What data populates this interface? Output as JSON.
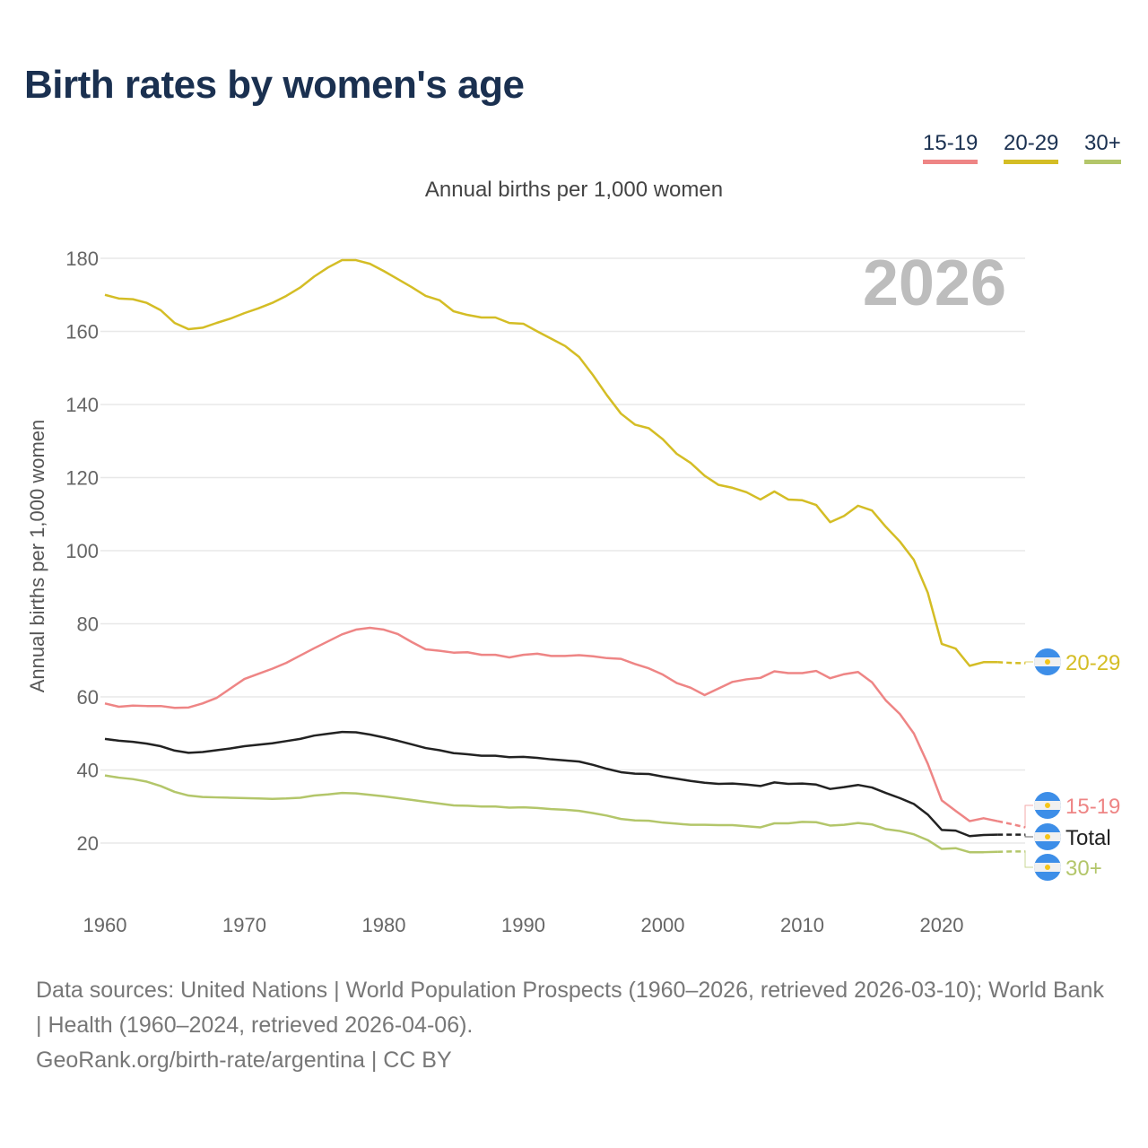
{
  "title": "Birth rates by women's age",
  "subtitle": "Annual births per 1,000 women",
  "year_watermark": "2026",
  "legend": [
    {
      "label": "15-19",
      "color": "#ee8585"
    },
    {
      "label": "20-29",
      "color": "#d4bd25"
    },
    {
      "label": "30+",
      "color": "#b3c66a"
    }
  ],
  "footer": {
    "sources": "Data sources: United Nations | World Population Prospects (1960–2026, retrieved 2026-03-10); World Bank | Health (1960–2024, retrieved 2026-04-06).",
    "credit": "GeoRank.org/birth-rate/argentina | CC BY"
  },
  "chart_data": {
    "type": "line",
    "title": "Birth rates by women's age",
    "xlabel": "",
    "ylabel": "Annual births per 1,000 women",
    "xlim": [
      1960,
      2026
    ],
    "ylim": [
      10,
      185
    ],
    "x_ticks": [
      1960,
      1970,
      1980,
      1990,
      2000,
      2010,
      2020
    ],
    "y_ticks": [
      20,
      40,
      60,
      80,
      100,
      120,
      140,
      160,
      180
    ],
    "grid": true,
    "projection_start": 2024,
    "x_start": 1960,
    "series": [
      {
        "name": "20-29",
        "color": "#d4bd25",
        "values": [
          170,
          169,
          168.8,
          167.8,
          165.8,
          162.3,
          160.6,
          161,
          162.3,
          163.5,
          165,
          166.3,
          167.8,
          169.7,
          172,
          175,
          177.5,
          179.5,
          179.5,
          178.5,
          176.5,
          174.3,
          172.1,
          169.7,
          168.5,
          165.5,
          164.5,
          163.8,
          163.8,
          162.3,
          162.1,
          160,
          158,
          156,
          153,
          148,
          142.5,
          137.5,
          134.5,
          133.5,
          130.5,
          126.5,
          124,
          120.5,
          118,
          117.2,
          116,
          114,
          116.2,
          114,
          113.8,
          112.5,
          107.8,
          109.5,
          112.3,
          111,
          106.5,
          102.5,
          97.5,
          88.5,
          74.5,
          73.2,
          68.5,
          69.5,
          69.5,
          69.3,
          69.2
        ]
      },
      {
        "name": "15-19",
        "color": "#ee8585",
        "values": [
          58.2,
          57.3,
          57.6,
          57.5,
          57.5,
          57,
          57.1,
          58.2,
          59.7,
          62.3,
          64.9,
          66.3,
          67.7,
          69.3,
          71.3,
          73.3,
          75.2,
          77.1,
          78.4,
          78.9,
          78.4,
          77.2,
          75,
          73,
          72.6,
          72.1,
          72.2,
          71.5,
          71.5,
          70.8,
          71.5,
          71.8,
          71.2,
          71.2,
          71.4,
          71.1,
          70.6,
          70.4,
          69,
          67.8,
          66.1,
          63.8,
          62.5,
          60.5,
          62.3,
          64.1,
          64.8,
          65.2,
          67,
          66.5,
          66.5,
          67.1,
          65.1,
          66.2,
          66.8,
          64,
          59,
          55.3,
          50,
          41.7,
          31.7,
          28.8,
          26,
          26.8,
          26,
          25.2,
          24.3
        ]
      },
      {
        "name": "Total",
        "color": "#222222",
        "values": [
          48.5,
          48,
          47.7,
          47.2,
          46.5,
          45.3,
          44.7,
          44.9,
          45.4,
          45.9,
          46.5,
          46.9,
          47.3,
          47.9,
          48.5,
          49.4,
          49.9,
          50.4,
          50.3,
          49.7,
          48.9,
          48,
          47,
          46,
          45.4,
          44.6,
          44.3,
          43.9,
          43.9,
          43.5,
          43.6,
          43.3,
          42.9,
          42.6,
          42.3,
          41.4,
          40.3,
          39.4,
          39,
          38.9,
          38.2,
          37.6,
          37,
          36.5,
          36.2,
          36.3,
          36,
          35.6,
          36.6,
          36.2,
          36.3,
          36,
          34.8,
          35.3,
          35.9,
          35.2,
          33.7,
          32.3,
          30.7,
          27.8,
          23.6,
          23.4,
          21.9,
          22.2,
          22.3,
          22.3,
          22.3
        ]
      },
      {
        "name": "30+",
        "color": "#b3c66a",
        "values": [
          38.5,
          37.9,
          37.5,
          36.8,
          35.6,
          34,
          33,
          32.6,
          32.5,
          32.4,
          32.3,
          32.2,
          32.1,
          32.2,
          32.4,
          33,
          33.3,
          33.7,
          33.6,
          33.2,
          32.8,
          32.3,
          31.8,
          31.3,
          30.8,
          30.3,
          30.2,
          30,
          30,
          29.7,
          29.8,
          29.6,
          29.3,
          29.1,
          28.8,
          28.2,
          27.5,
          26.6,
          26.2,
          26.1,
          25.6,
          25.3,
          25,
          25,
          24.9,
          24.9,
          24.6,
          24.3,
          25.4,
          25.4,
          25.8,
          25.7,
          24.8,
          25,
          25.5,
          25.1,
          23.8,
          23.3,
          22.4,
          20.8,
          18.4,
          18.6,
          17.5,
          17.5,
          17.6,
          17.7,
          17.7
        ]
      }
    ]
  }
}
